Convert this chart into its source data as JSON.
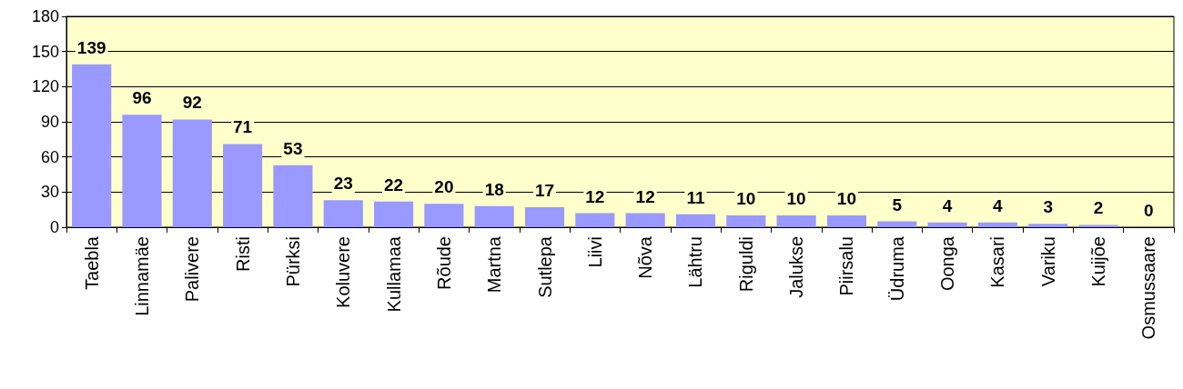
{
  "chart_data": {
    "type": "bar",
    "categories": [
      "Taebla",
      "Linnamäe",
      "Palivere",
      "Risti",
      "Pürksi",
      "Koluvere",
      "Kullamaa",
      "Rõude",
      "Martna",
      "Sutlepa",
      "Liivi",
      "Nõva",
      "Lähtru",
      "Riguldi",
      "Jalukse",
      "Piirsalu",
      "Üdruma",
      "Oonga",
      "Kasari",
      "Variku",
      "Kuijõe",
      "Osmussaare"
    ],
    "values": [
      139,
      96,
      92,
      71,
      53,
      23,
      22,
      20,
      18,
      17,
      12,
      12,
      11,
      10,
      10,
      10,
      5,
      4,
      4,
      3,
      2,
      0
    ],
    "color": "#9999ff",
    "ylim": [
      0,
      180
    ],
    "yticks": [
      0,
      30,
      60,
      90,
      120,
      150,
      180
    ],
    "grid": "y",
    "data_labels": true
  }
}
